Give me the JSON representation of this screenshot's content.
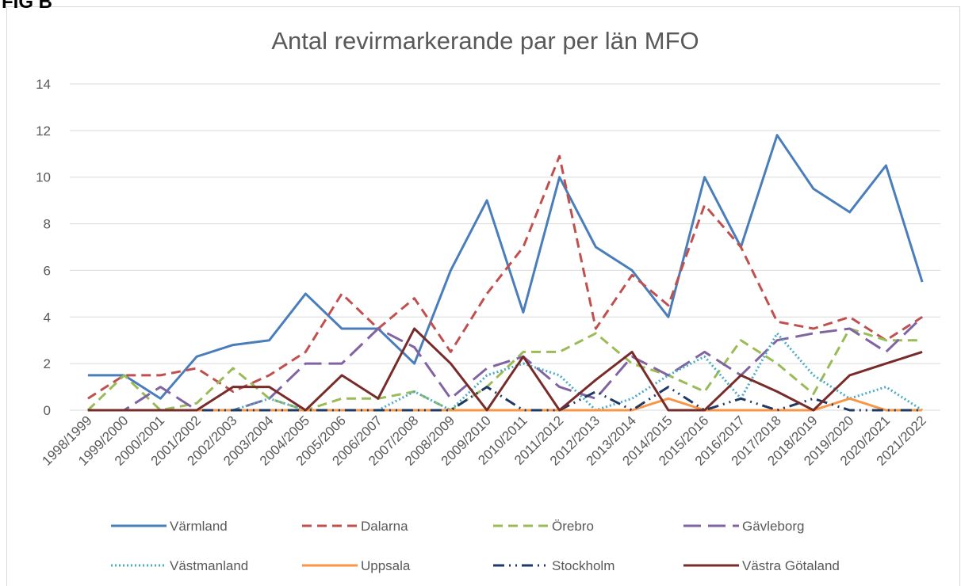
{
  "figure_label": "FIG B",
  "chart_data": {
    "type": "line",
    "title": "Antal revirmarkerande par per län  MFO",
    "categories": [
      "1998/1999",
      "1999/2000",
      "2000/2001",
      "2001/2002",
      "2002/2003",
      "2003/2004",
      "2004/2005",
      "2005/2006",
      "2006/2007",
      "2007/2008",
      "2008/2009",
      "2009/2010",
      "2010/2011",
      "2011/2012",
      "2012/2013",
      "2013/2014",
      "2014/2015",
      "2015/2016",
      "2016/2017",
      "2017/2018",
      "2018/2019",
      "2019/2020",
      "2020/2021",
      "2021/2022"
    ],
    "ylim": [
      0,
      14
    ],
    "yticks": [
      0,
      2,
      4,
      6,
      8,
      10,
      12,
      14
    ],
    "grid": true,
    "legend": "bottom",
    "series": [
      {
        "name": "Värmland",
        "color": "#4a7ebb",
        "style": "solid",
        "values": [
          1.5,
          1.5,
          0.5,
          2.3,
          2.8,
          3,
          5,
          3.5,
          3.5,
          2,
          6,
          9,
          4.2,
          10,
          7,
          6,
          4,
          10,
          7,
          11.8,
          9.5,
          8.5,
          10.5,
          5.5
        ]
      },
      {
        "name": "Dalarna",
        "color": "#c0504d",
        "style": "dash",
        "values": [
          0.5,
          1.5,
          1.5,
          1.8,
          0.8,
          1.5,
          2.5,
          5,
          3.5,
          4.8,
          2.5,
          5,
          7,
          10.9,
          3.5,
          5.8,
          4.5,
          8.8,
          7,
          3.8,
          3.5,
          4,
          3,
          4
        ]
      },
      {
        "name": "Örebro",
        "color": "#9bbb59",
        "style": "dash",
        "values": [
          0,
          1.5,
          0,
          0.3,
          1.8,
          0.5,
          0,
          0.5,
          0.5,
          0.8,
          0,
          1,
          2.5,
          2.5,
          3.3,
          2,
          1.5,
          0.8,
          3,
          2,
          0.7,
          3.5,
          3,
          3
        ]
      },
      {
        "name": "Gävleborg",
        "color": "#8064a2",
        "style": "long-dash",
        "values": [
          0,
          0,
          1,
          0,
          0,
          0.5,
          2,
          2,
          3.5,
          2.7,
          0.5,
          1.8,
          2.3,
          1,
          0.5,
          2.3,
          1.5,
          2.5,
          1.5,
          3,
          3.3,
          3.5,
          2.5,
          4
        ]
      },
      {
        "name": "Västmanland",
        "color": "#4bacc6",
        "style": "dot",
        "values": [
          0,
          0,
          0,
          0,
          0,
          0.5,
          0,
          0,
          0,
          0.8,
          0,
          1.5,
          2,
          1.5,
          0,
          0.5,
          1.5,
          2.3,
          0.5,
          3.3,
          1.5,
          0.5,
          1,
          0
        ]
      },
      {
        "name": "Uppsala",
        "color": "#f79646",
        "style": "solid",
        "values": [
          0,
          0,
          0,
          0,
          0,
          0,
          0,
          0,
          0,
          0,
          0,
          0,
          0,
          0,
          0,
          0,
          0.5,
          0,
          0,
          0,
          0,
          0.5,
          0,
          0
        ]
      },
      {
        "name": "Stockholm",
        "color": "#1f3864",
        "style": "dash-dot",
        "values": [
          0,
          0,
          0,
          0,
          0,
          0,
          0,
          0,
          0,
          0,
          0,
          1,
          0,
          0,
          0.8,
          0,
          1,
          0,
          0.5,
          0,
          0.5,
          0,
          0,
          0
        ]
      },
      {
        "name": "Västra Götaland",
        "color": "#772c2a",
        "style": "solid",
        "values": [
          0,
          0,
          0,
          0,
          1,
          1,
          0,
          1.5,
          0.5,
          3.5,
          2,
          0,
          2.3,
          0,
          1.3,
          2.5,
          0,
          0,
          1.5,
          0.8,
          0,
          1.5,
          2,
          2.5
        ]
      }
    ]
  }
}
